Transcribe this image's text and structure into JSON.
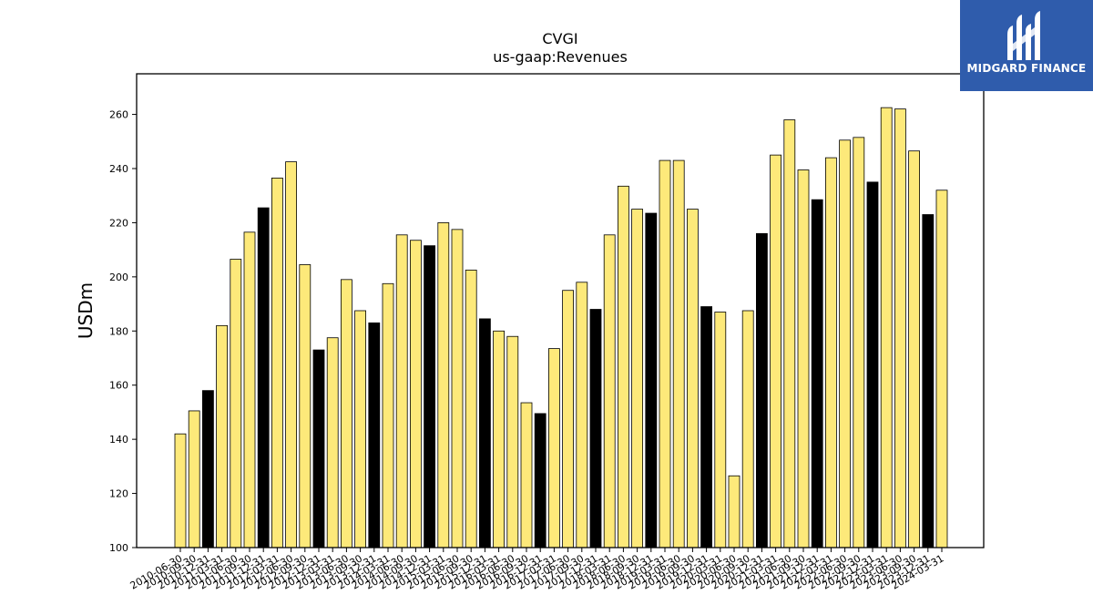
{
  "brand": {
    "name": "MIDGARD FINANCE",
    "bg_color": "#2f5cac"
  },
  "colors": {
    "bar_normal": "#fde97a",
    "bar_highlight": "#000000",
    "edge": "#000000"
  },
  "chart_data": {
    "type": "bar",
    "title": "CVGI",
    "subtitle": "us-gaap:Revenues",
    "xlabel": "",
    "ylabel": "USDm",
    "ylim": [
      100,
      275
    ],
    "yticks": [
      100,
      120,
      140,
      160,
      180,
      200,
      220,
      240,
      260
    ],
    "grid": false,
    "legend": "none",
    "categories": [
      "2010-06-30",
      "2010-09-30",
      "2010-12-31",
      "2011-03-31",
      "2011-06-30",
      "2011-09-30",
      "2011-12-31",
      "2012-03-31",
      "2012-06-30",
      "2012-09-30",
      "2012-12-31",
      "2013-03-31",
      "2013-06-30",
      "2013-09-30",
      "2013-12-31",
      "2014-03-31",
      "2014-06-30",
      "2014-09-30",
      "2014-12-31",
      "2015-03-31",
      "2015-06-30",
      "2015-09-30",
      "2015-12-31",
      "2016-03-31",
      "2016-06-30",
      "2016-09-30",
      "2016-12-31",
      "2017-03-31",
      "2017-06-30",
      "2017-09-30",
      "2017-12-31",
      "2018-03-31",
      "2018-06-30",
      "2018-09-30",
      "2018-12-31",
      "2019-03-31",
      "2019-06-30",
      "2019-09-30",
      "2019-12-31",
      "2020-03-31",
      "2020-06-30",
      "2020-09-30",
      "2020-12-31",
      "2021-03-31",
      "2021-06-30",
      "2021-09-30",
      "2021-12-31",
      "2022-03-31",
      "2022-06-30",
      "2022-09-30",
      "2022-12-31",
      "2023-03-31",
      "2023-06-30",
      "2023-09-30",
      "2023-12-31",
      "2024-03-31"
    ],
    "values": [
      142,
      150.5,
      158,
      182,
      206.5,
      216.5,
      225.5,
      236.5,
      242.5,
      204.5,
      173,
      177.5,
      199,
      187.5,
      183,
      197.5,
      215.5,
      213.5,
      211.5,
      220,
      217.5,
      202.5,
      184.5,
      180,
      178,
      153.5,
      149.5,
      173.5,
      195,
      198,
      188,
      215.5,
      233.5,
      225,
      223.5,
      243,
      243,
      225,
      189,
      187,
      126.5,
      187.5,
      216,
      245,
      258,
      239.5,
      228.5,
      244,
      250.5,
      251.5,
      235,
      262.5,
      262,
      246.5,
      223,
      232
    ],
    "highlight": [
      false,
      false,
      true,
      false,
      false,
      false,
      true,
      false,
      false,
      false,
      true,
      false,
      false,
      false,
      true,
      false,
      false,
      false,
      true,
      false,
      false,
      false,
      true,
      false,
      false,
      false,
      true,
      false,
      false,
      false,
      true,
      false,
      false,
      false,
      true,
      false,
      false,
      false,
      true,
      false,
      false,
      false,
      true,
      false,
      false,
      false,
      true,
      false,
      false,
      false,
      true,
      false,
      false,
      false,
      true,
      false
    ]
  }
}
